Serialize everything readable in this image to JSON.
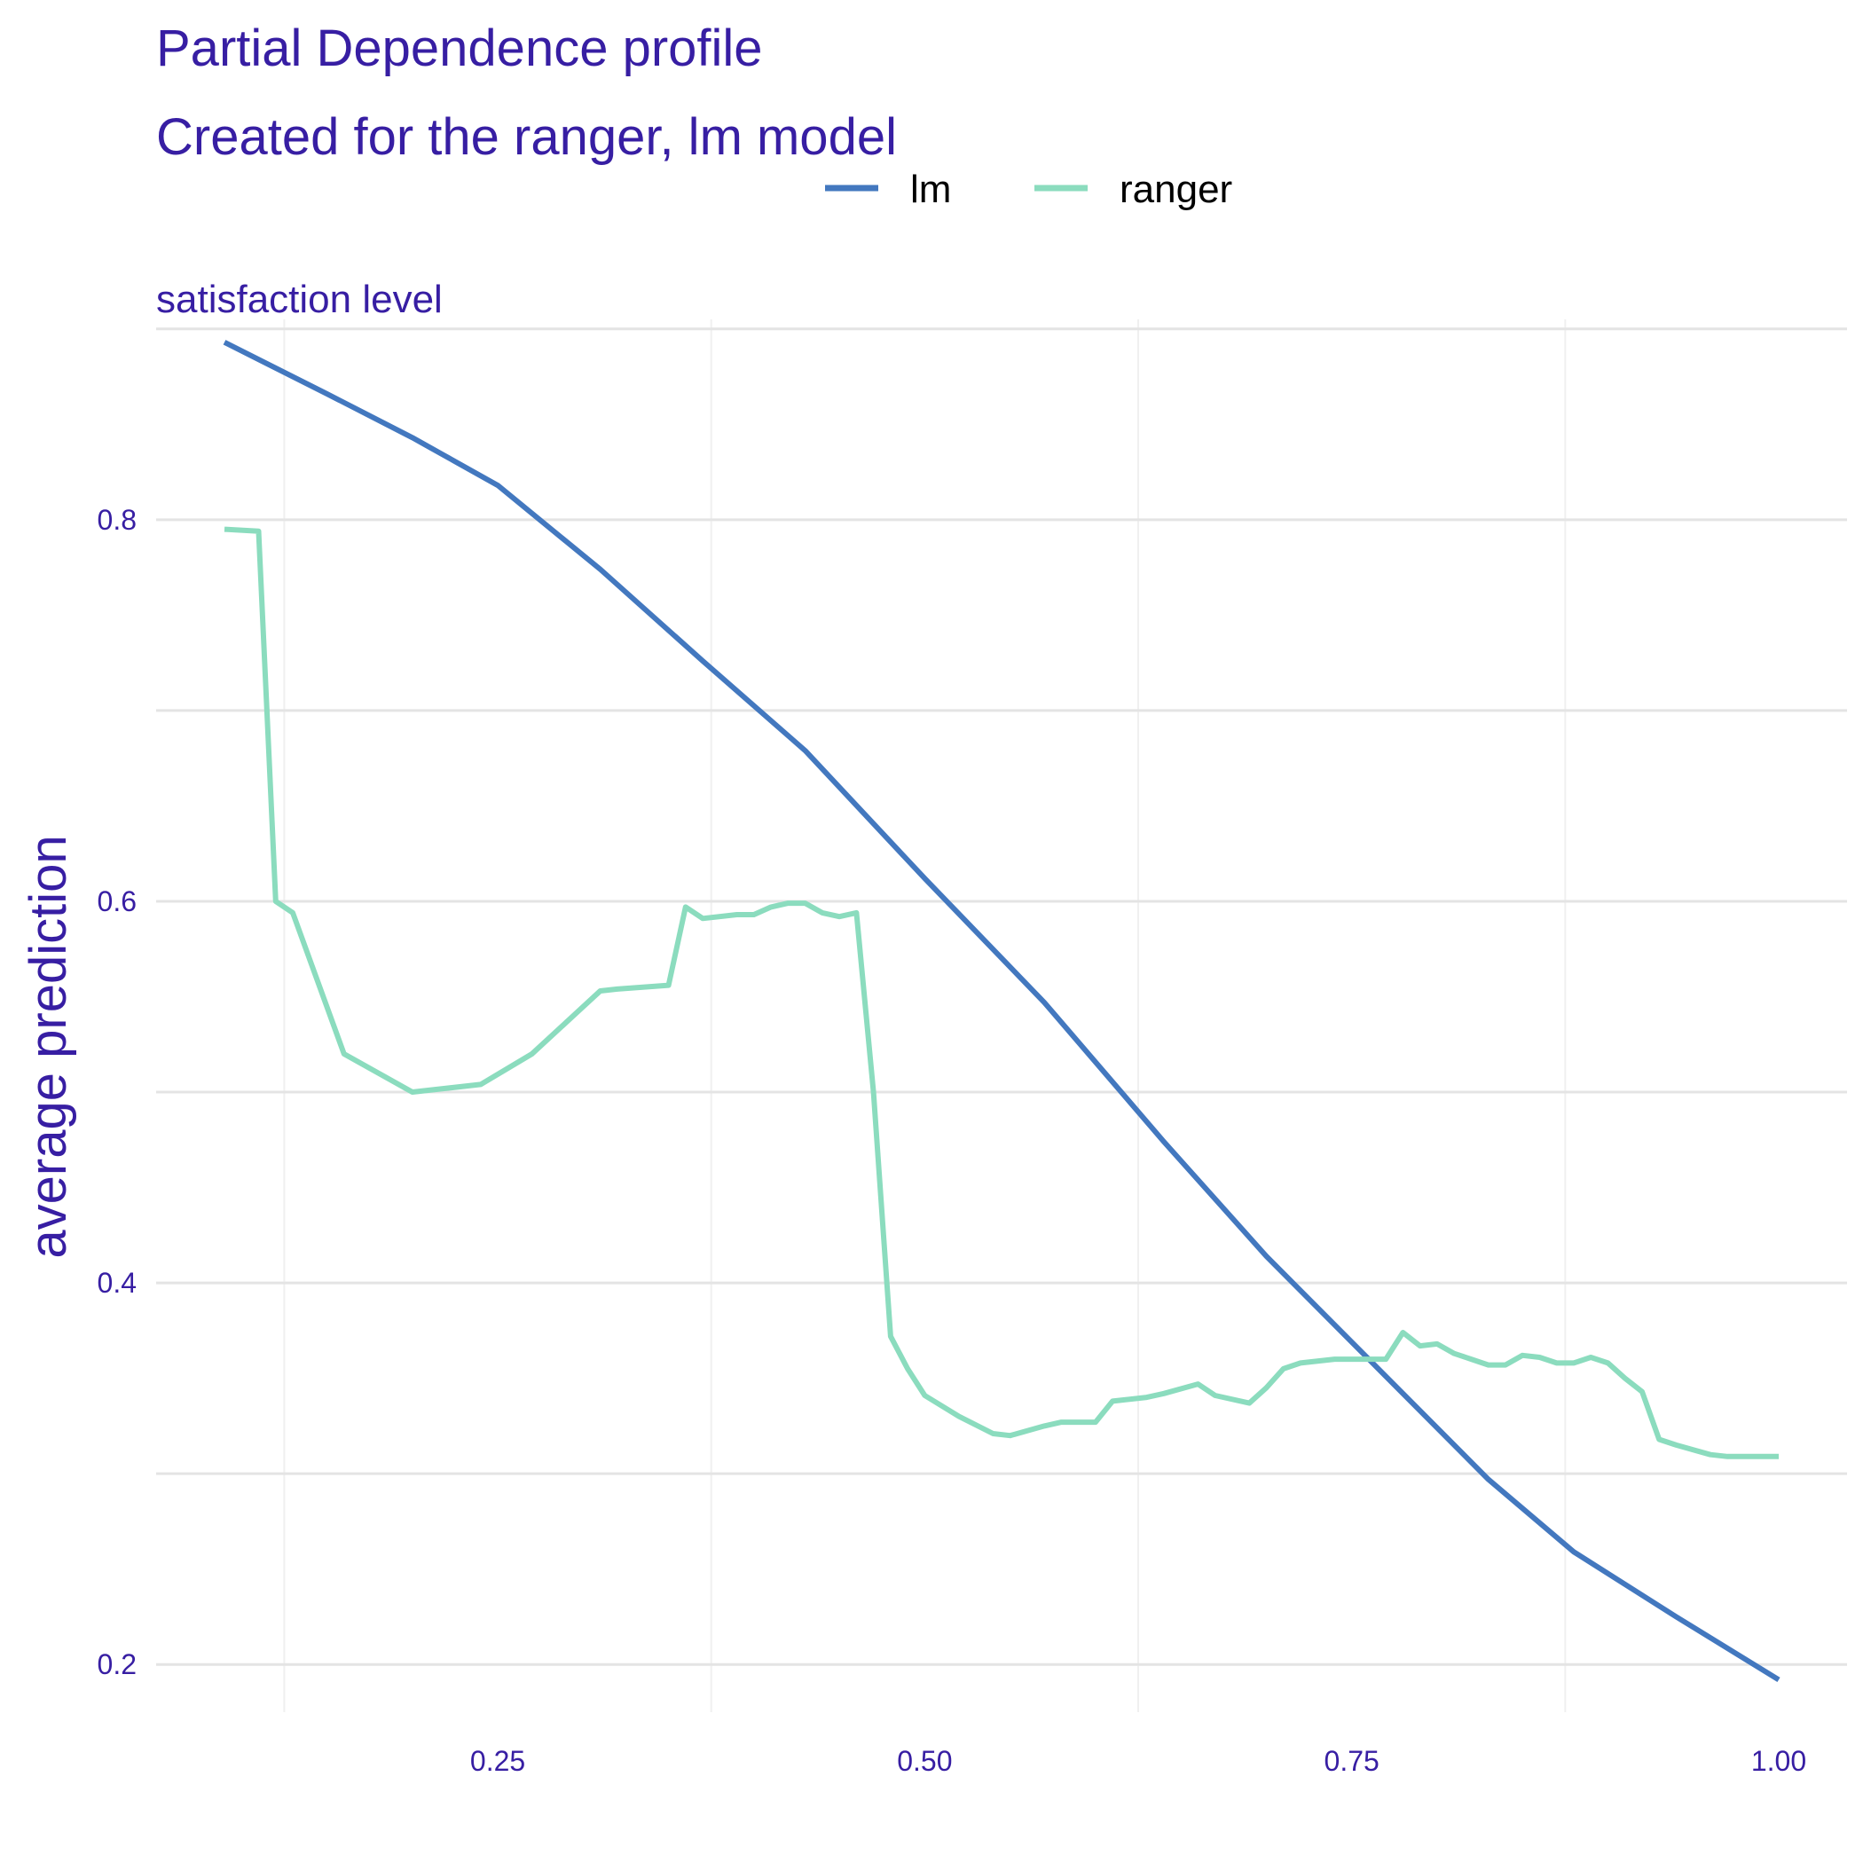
{
  "chart_data": {
    "type": "line",
    "title": "Partial Dependence profile",
    "subtitle": "Created for the ranger, lm model",
    "panel_label": "satisfaction_level",
    "xlabel": "",
    "ylabel": "average prediction",
    "xlim": [
      0.05,
      1.04
    ],
    "ylim": [
      0.175,
      0.905
    ],
    "x_ticks": [
      0.25,
      0.5,
      0.75,
      1.0
    ],
    "x_tick_labels": [
      "0.25",
      "0.50",
      "0.75",
      "1.00"
    ],
    "y_ticks": [
      0.2,
      0.4,
      0.6,
      0.8
    ],
    "y_tick_labels": [
      "0.2",
      "0.4",
      "0.6",
      "0.8"
    ],
    "grid": true,
    "legend_position": "top",
    "series": [
      {
        "name": "lm",
        "color": "#4378bf",
        "x": [
          0.09,
          0.11,
          0.15,
          0.2,
          0.25,
          0.31,
          0.37,
          0.43,
          0.5,
          0.57,
          0.64,
          0.7,
          0.77,
          0.83,
          0.88,
          0.94,
          1.0
        ],
        "y": [
          0.893,
          0.884,
          0.866,
          0.843,
          0.818,
          0.774,
          0.726,
          0.679,
          0.612,
          0.547,
          0.474,
          0.414,
          0.351,
          0.297,
          0.259,
          0.225,
          0.192
        ]
      },
      {
        "name": "ranger",
        "color": "#8bdcbe",
        "x": [
          0.09,
          0.11,
          0.12,
          0.13,
          0.16,
          0.2,
          0.24,
          0.27,
          0.31,
          0.32,
          0.35,
          0.36,
          0.37,
          0.39,
          0.4,
          0.41,
          0.42,
          0.43,
          0.44,
          0.45,
          0.46,
          0.47,
          0.48,
          0.49,
          0.5,
          0.52,
          0.54,
          0.55,
          0.57,
          0.58,
          0.6,
          0.61,
          0.63,
          0.64,
          0.66,
          0.67,
          0.69,
          0.7,
          0.71,
          0.72,
          0.74,
          0.75,
          0.76,
          0.77,
          0.78,
          0.79,
          0.8,
          0.81,
          0.82,
          0.83,
          0.84,
          0.85,
          0.86,
          0.87,
          0.88,
          0.89,
          0.9,
          0.91,
          0.92,
          0.93,
          0.94,
          0.96,
          0.97,
          0.98,
          0.99,
          1.0
        ],
        "y": [
          0.795,
          0.794,
          0.6,
          0.594,
          0.52,
          0.5,
          0.504,
          0.52,
          0.553,
          0.554,
          0.556,
          0.597,
          0.591,
          0.593,
          0.593,
          0.597,
          0.599,
          0.599,
          0.594,
          0.592,
          0.594,
          0.5,
          0.372,
          0.355,
          0.341,
          0.33,
          0.321,
          0.32,
          0.325,
          0.327,
          0.327,
          0.338,
          0.34,
          0.342,
          0.347,
          0.341,
          0.337,
          0.345,
          0.355,
          0.358,
          0.36,
          0.36,
          0.36,
          0.36,
          0.374,
          0.367,
          0.368,
          0.363,
          0.36,
          0.357,
          0.357,
          0.362,
          0.361,
          0.358,
          0.358,
          0.361,
          0.358,
          0.35,
          0.343,
          0.318,
          0.315,
          0.31,
          0.309,
          0.309,
          0.309,
          0.309
        ]
      }
    ]
  }
}
